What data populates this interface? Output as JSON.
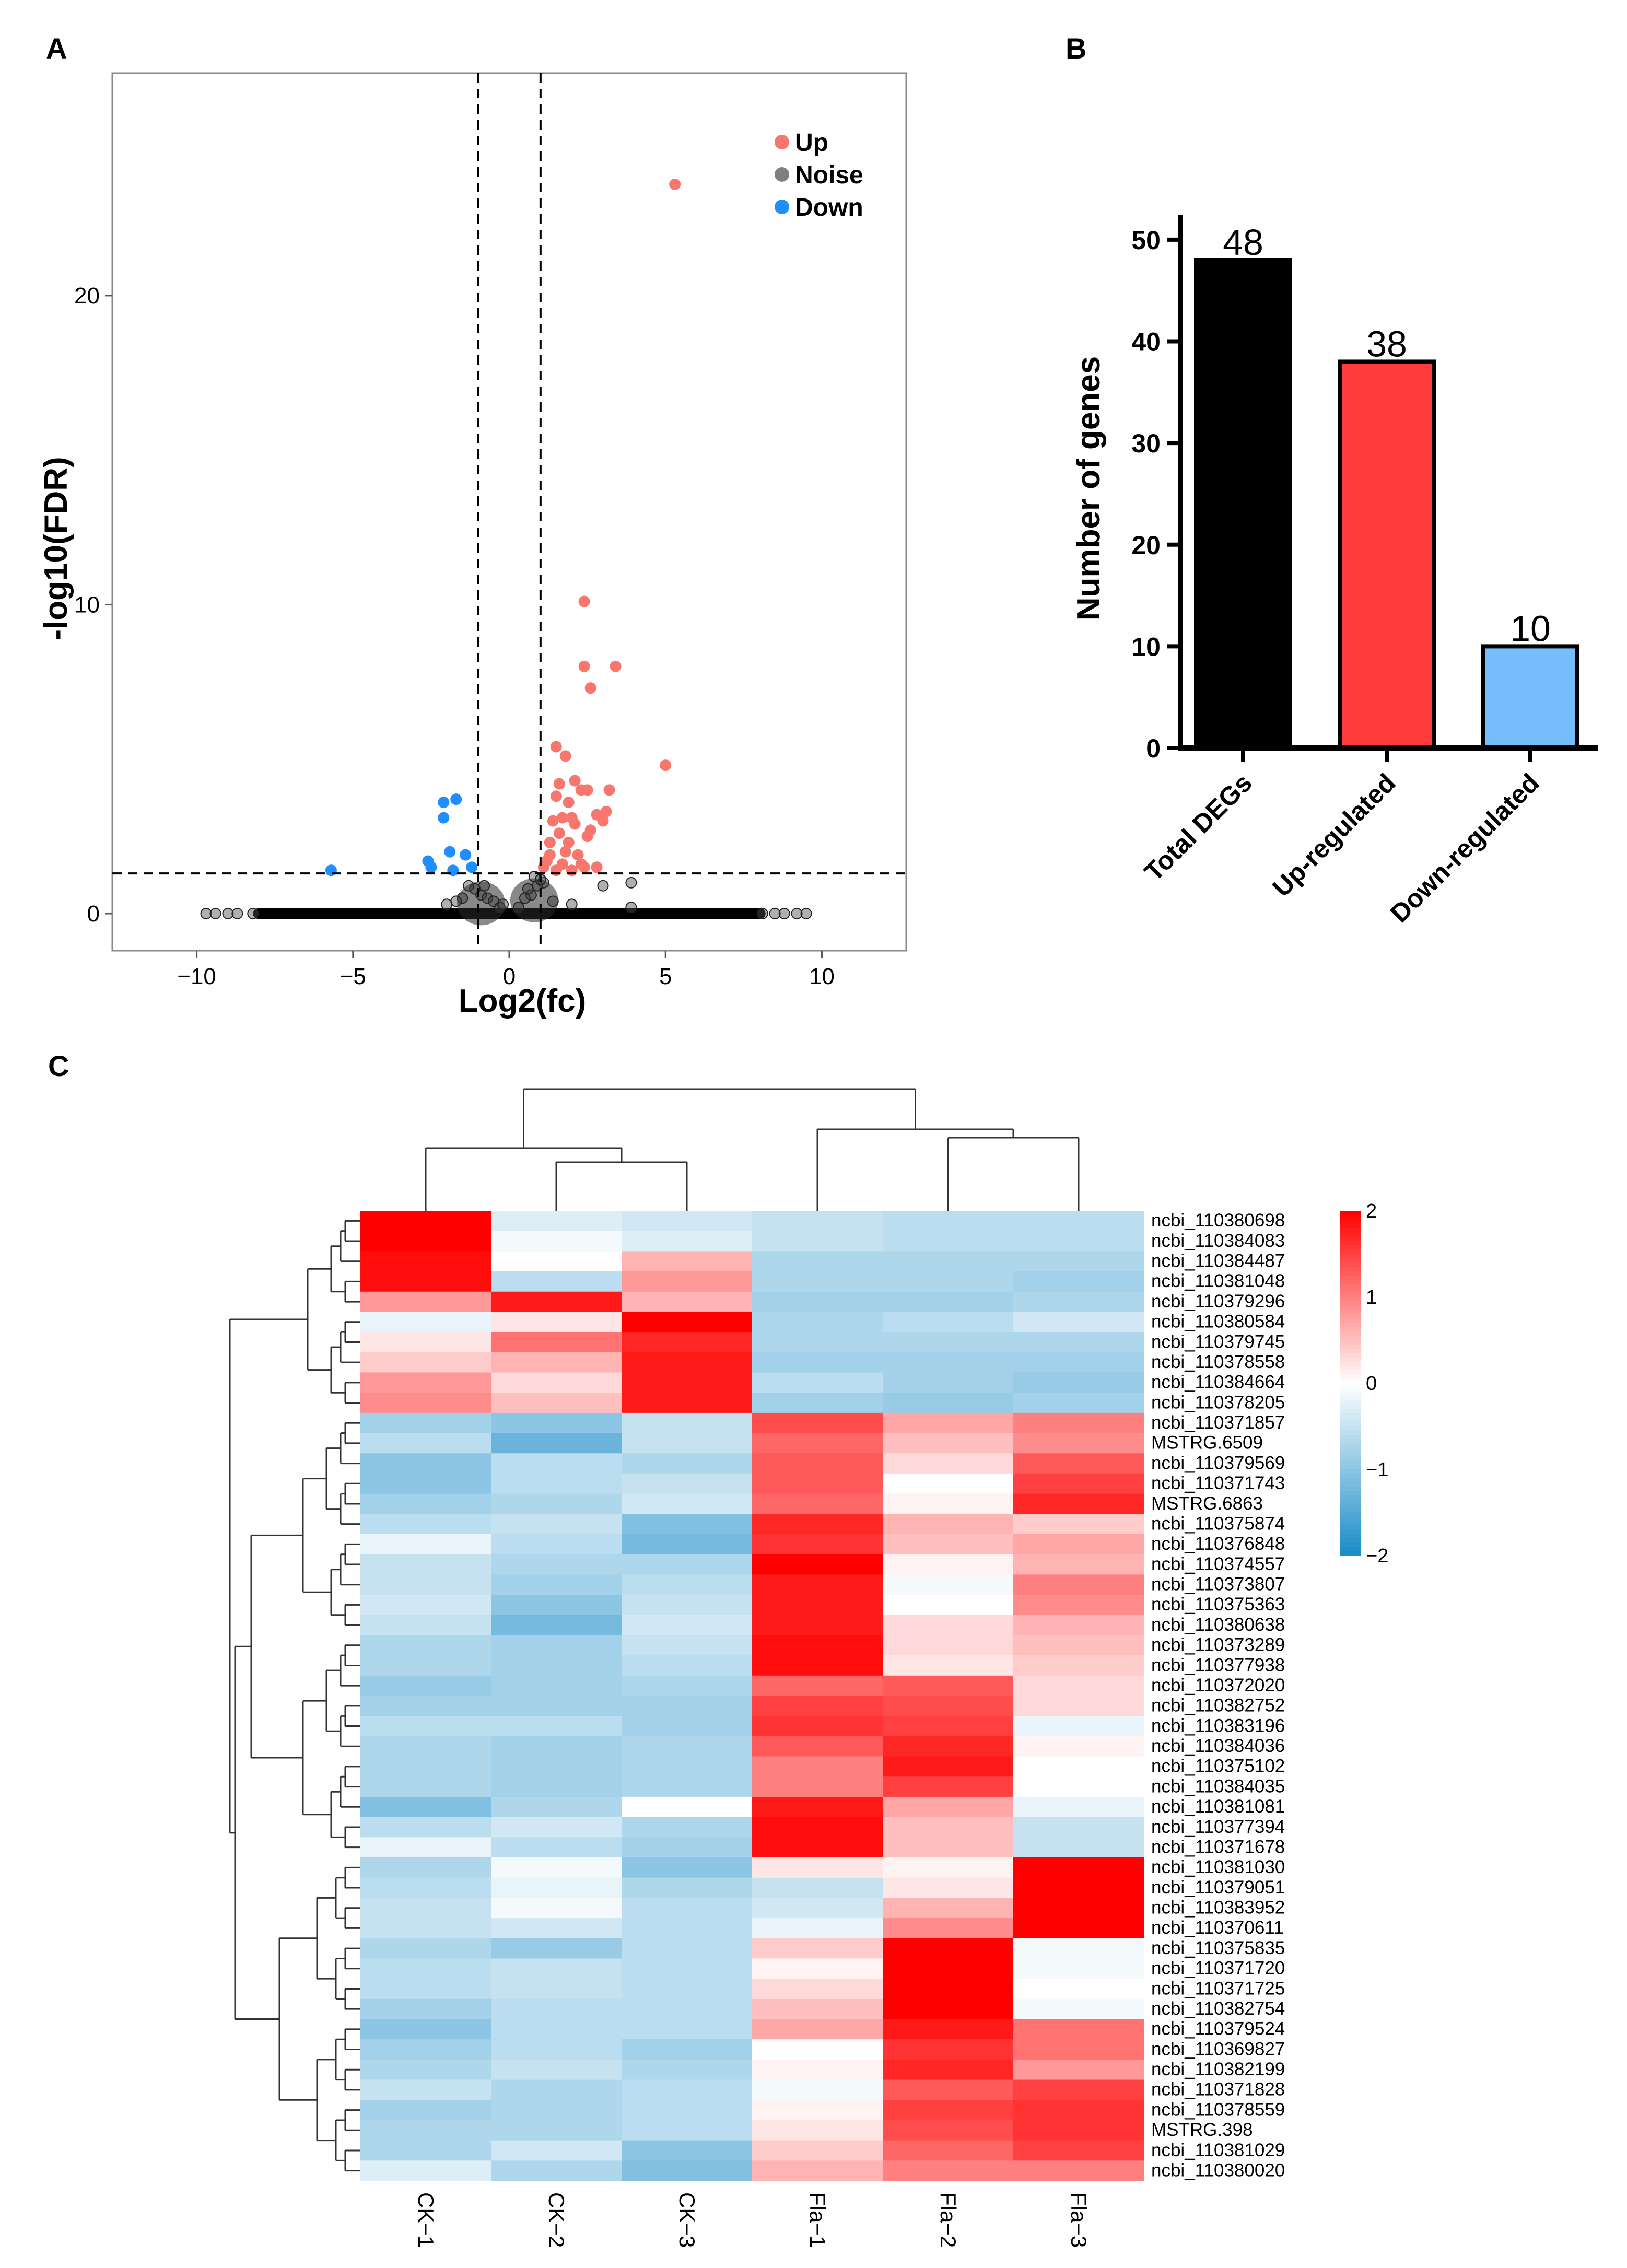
{
  "panel_labels": {
    "a": "A",
    "b": "B",
    "c": "C"
  },
  "chart_data": [
    {
      "type": "scatter",
      "title": "",
      "xlabel": "Log2(fc)",
      "ylabel": "-log10(FDR)",
      "xlim": [
        -12.7,
        12.7
      ],
      "ylim": [
        -1.2,
        27.2
      ],
      "xticks": [
        -10,
        -5,
        0,
        5,
        10
      ],
      "xtick_labels": [
        "−10",
        "−5",
        "0",
        "5",
        "10"
      ],
      "yticks": [
        0,
        10,
        20
      ],
      "ytick_labels": [
        "0",
        "10",
        "20"
      ],
      "vlines": [
        -1,
        1
      ],
      "hline": 1.3,
      "colors": {
        "Up": "#f8766d",
        "Noise": "#7f7f7f",
        "Down": "#1f8fff"
      },
      "legend": [
        {
          "name": "Up",
          "color": "#f8766d"
        },
        {
          "name": "Noise",
          "color": "#7f7f7f"
        },
        {
          "name": "Down",
          "color": "#1f8fff"
        }
      ],
      "up_points": [
        [
          5.3,
          23.6
        ],
        [
          2.4,
          10.1
        ],
        [
          2.4,
          8.0
        ],
        [
          3.4,
          8.0
        ],
        [
          2.6,
          7.3
        ],
        [
          5.0,
          4.8
        ],
        [
          1.5,
          5.4
        ],
        [
          1.8,
          5.1
        ],
        [
          2.1,
          4.3
        ],
        [
          1.6,
          4.2
        ],
        [
          2.3,
          4.0
        ],
        [
          2.5,
          4.0
        ],
        [
          1.5,
          3.8
        ],
        [
          1.9,
          3.6
        ],
        [
          2.8,
          3.2
        ],
        [
          3.1,
          3.3
        ],
        [
          1.4,
          3.0
        ],
        [
          2.1,
          2.9
        ],
        [
          1.6,
          2.6
        ],
        [
          2.5,
          2.5
        ],
        [
          1.3,
          2.3
        ],
        [
          1.8,
          2.0
        ],
        [
          2.2,
          1.9
        ],
        [
          1.2,
          1.7
        ],
        [
          1.7,
          1.6
        ],
        [
          2.4,
          1.5
        ],
        [
          1.5,
          1.4
        ],
        [
          2.0,
          1.4
        ],
        [
          2.8,
          1.5
        ],
        [
          1.3,
          1.9
        ],
        [
          3.0,
          3.0
        ],
        [
          2.0,
          3.1
        ],
        [
          1.9,
          2.3
        ],
        [
          3.2,
          4.0
        ],
        [
          1.7,
          3.1
        ],
        [
          2.6,
          2.7
        ],
        [
          1.1,
          1.5
        ],
        [
          2.3,
          1.6
        ]
      ],
      "down_points": [
        [
          -2.1,
          3.6
        ],
        [
          -1.7,
          3.7
        ],
        [
          -2.1,
          3.1
        ],
        [
          -1.9,
          2.0
        ],
        [
          -2.6,
          1.7
        ],
        [
          -2.5,
          1.5
        ],
        [
          -1.4,
          1.9
        ],
        [
          -1.8,
          1.4
        ],
        [
          -5.7,
          1.4
        ],
        [
          -1.2,
          1.5
        ]
      ],
      "noise_points": [
        [
          -9.7,
          0
        ],
        [
          -9.4,
          0
        ],
        [
          -9.0,
          0
        ],
        [
          -8.7,
          0
        ],
        [
          -8.2,
          0
        ],
        [
          9.5,
          0
        ],
        [
          9.2,
          0
        ],
        [
          8.8,
          0
        ],
        [
          8.5,
          0
        ],
        [
          8.1,
          0
        ],
        [
          -0.9,
          0.6
        ],
        [
          -0.7,
          0.5
        ],
        [
          -0.5,
          0.4
        ],
        [
          -1.1,
          0.8
        ],
        [
          -1.3,
          0.9
        ],
        [
          -0.8,
          0.9
        ],
        [
          0.7,
          0.6
        ],
        [
          0.5,
          0.5
        ],
        [
          0.9,
          0.9
        ],
        [
          1.1,
          1.0
        ],
        [
          0.6,
          0.8
        ],
        [
          0.8,
          1.2
        ],
        [
          1.0,
          1.1
        ],
        [
          3.9,
          0.2
        ],
        [
          3.0,
          0.9
        ],
        [
          3.9,
          1.0
        ],
        [
          -1.5,
          0.5
        ],
        [
          -1.7,
          0.4
        ],
        [
          -2.0,
          0.3
        ],
        [
          -0.3,
          0.2
        ],
        [
          0.3,
          0.2
        ],
        [
          -0.2,
          0.3
        ],
        [
          1.4,
          0.4
        ],
        [
          2.0,
          0.3
        ]
      ],
      "noise_band": [
        -8.2,
        8.2
      ]
    },
    {
      "type": "bar",
      "title": "",
      "xlabel": "",
      "ylabel": "Number of genes",
      "categories": [
        "Total DEGs",
        "Up-regulated",
        "Down-regulated"
      ],
      "values": [
        48,
        38,
        10
      ],
      "value_labels": [
        "48",
        "38",
        "10"
      ],
      "colors": [
        "#000000",
        "#ff3b3b",
        "#76bdfb"
      ],
      "ylim": [
        0,
        52
      ],
      "yticks": [
        0,
        10,
        20,
        30,
        40,
        50
      ],
      "ytick_labels": [
        "0",
        "10",
        "20",
        "30",
        "40",
        "50"
      ]
    },
    {
      "type": "heatmap",
      "title": "",
      "columns": [
        "CK−1",
        "CK−2",
        "CK−3",
        "Fla−1",
        "Fla−2",
        "Fla−3"
      ],
      "rows": [
        "ncbi_110380698",
        "ncbi_110384083",
        "ncbi_110384487",
        "ncbi_110381048",
        "ncbi_110379296",
        "ncbi_110380584",
        "ncbi_110379745",
        "ncbi_110378558",
        "ncbi_110384664",
        "ncbi_110378205",
        "ncbi_110371857",
        "MSTRG.6509",
        "ncbi_110379569",
        "ncbi_110371743",
        "MSTRG.6863",
        "ncbi_110375874",
        "ncbi_110376848",
        "ncbi_110374557",
        "ncbi_110373807",
        "ncbi_110375363",
        "ncbi_110380638",
        "ncbi_110373289",
        "ncbi_110377938",
        "ncbi_110372020",
        "ncbi_110382752",
        "ncbi_110383196",
        "ncbi_110384036",
        "ncbi_110375102",
        "ncbi_110384035",
        "ncbi_110381081",
        "ncbi_110377394",
        "ncbi_110371678",
        "ncbi_110381030",
        "ncbi_110379051",
        "ncbi_110383952",
        "ncbi_110370611",
        "ncbi_110375835",
        "ncbi_110371720",
        "ncbi_110371725",
        "ncbi_110382754",
        "ncbi_110379524",
        "ncbi_110369827",
        "ncbi_110382199",
        "ncbi_110371828",
        "ncbi_110378559",
        "MSTRG.398",
        "ncbi_110381029",
        "ncbi_110380020"
      ],
      "values": [
        [
          2.0,
          -0.3,
          -0.4,
          -0.5,
          -0.6,
          -0.6
        ],
        [
          2.0,
          -0.1,
          -0.3,
          -0.5,
          -0.6,
          -0.6
        ],
        [
          1.9,
          0.0,
          0.6,
          -0.7,
          -0.7,
          -0.7
        ],
        [
          1.9,
          -0.6,
          0.8,
          -0.7,
          -0.7,
          -0.8
        ],
        [
          0.8,
          1.8,
          0.6,
          -0.8,
          -0.8,
          -0.7
        ],
        [
          -0.2,
          0.2,
          2.0,
          -0.7,
          -0.6,
          -0.4
        ],
        [
          0.2,
          1.1,
          1.7,
          -0.7,
          -0.7,
          -0.7
        ],
        [
          0.4,
          0.6,
          1.8,
          -0.8,
          -0.8,
          -0.8
        ],
        [
          0.8,
          0.3,
          1.8,
          -0.6,
          -0.8,
          -0.9
        ],
        [
          0.9,
          0.5,
          1.8,
          -0.8,
          -0.9,
          -0.8
        ],
        [
          -0.8,
          -1.0,
          -0.5,
          1.4,
          0.7,
          1.0
        ],
        [
          -0.6,
          -1.3,
          -0.5,
          1.2,
          0.5,
          0.9
        ],
        [
          -1.0,
          -0.6,
          -0.7,
          1.3,
          0.3,
          1.3
        ],
        [
          -1.0,
          -0.6,
          -0.5,
          1.3,
          0.0,
          1.5
        ],
        [
          -0.8,
          -0.7,
          -0.4,
          1.2,
          0.1,
          1.7
        ],
        [
          -0.6,
          -0.5,
          -1.1,
          1.7,
          0.6,
          0.4
        ],
        [
          -0.2,
          -0.6,
          -1.2,
          1.6,
          0.5,
          0.7
        ],
        [
          -0.5,
          -0.7,
          -0.7,
          2.0,
          0.1,
          0.6
        ],
        [
          -0.5,
          -0.8,
          -0.6,
          1.8,
          -0.1,
          1.0
        ],
        [
          -0.4,
          -1.0,
          -0.5,
          1.8,
          0.0,
          0.9
        ],
        [
          -0.5,
          -1.2,
          -0.4,
          1.8,
          0.3,
          0.6
        ],
        [
          -0.7,
          -0.8,
          -0.5,
          1.9,
          0.3,
          0.5
        ],
        [
          -0.7,
          -0.8,
          -0.6,
          1.9,
          0.2,
          0.4
        ],
        [
          -0.9,
          -0.8,
          -0.7,
          1.2,
          1.3,
          0.3
        ],
        [
          -0.8,
          -0.8,
          -0.8,
          1.5,
          1.4,
          0.3
        ],
        [
          -0.6,
          -0.6,
          -0.8,
          1.6,
          1.5,
          -0.2
        ],
        [
          -0.7,
          -0.8,
          -0.7,
          1.3,
          1.7,
          0.1
        ],
        [
          -0.7,
          -0.8,
          -0.7,
          1.0,
          1.8,
          0.0
        ],
        [
          -0.7,
          -0.8,
          -0.7,
          1.0,
          1.5,
          0.0
        ],
        [
          -1.1,
          -0.7,
          0.0,
          1.8,
          0.7,
          -0.2
        ],
        [
          -0.6,
          -0.4,
          -0.7,
          1.9,
          0.5,
          -0.5
        ],
        [
          -0.2,
          -0.6,
          -0.8,
          1.9,
          0.5,
          -0.5
        ],
        [
          -0.7,
          -0.1,
          -1.0,
          0.2,
          0.1,
          2.0
        ],
        [
          -0.6,
          -0.2,
          -0.7,
          -0.5,
          0.2,
          2.0
        ],
        [
          -0.5,
          -0.1,
          -0.6,
          -0.4,
          0.6,
          2.0
        ],
        [
          -0.5,
          -0.4,
          -0.6,
          -0.2,
          0.9,
          2.0
        ],
        [
          -0.7,
          -0.9,
          -0.6,
          0.4,
          2.0,
          -0.1
        ],
        [
          -0.6,
          -0.5,
          -0.6,
          0.1,
          2.0,
          -0.1
        ],
        [
          -0.6,
          -0.5,
          -0.6,
          0.3,
          2.0,
          0.0
        ],
        [
          -0.8,
          -0.6,
          -0.6,
          0.5,
          2.0,
          -0.1
        ],
        [
          -1.0,
          -0.6,
          -0.6,
          0.7,
          1.8,
          1.1
        ],
        [
          -0.8,
          -0.6,
          -0.8,
          0.0,
          1.6,
          1.1
        ],
        [
          -0.7,
          -0.5,
          -0.7,
          0.1,
          1.7,
          0.8
        ],
        [
          -0.5,
          -0.7,
          -0.6,
          -0.1,
          1.3,
          1.5
        ],
        [
          -0.8,
          -0.7,
          -0.6,
          0.1,
          1.5,
          1.6
        ],
        [
          -0.7,
          -0.7,
          -0.6,
          0.2,
          1.4,
          1.6
        ],
        [
          -0.7,
          -0.4,
          -1.0,
          0.4,
          1.2,
          1.5
        ],
        [
          -0.3,
          -0.7,
          -1.1,
          0.6,
          1.0,
          1.0
        ]
      ],
      "colorbar": {
        "min": -2,
        "max": 2,
        "ticks": [
          "2",
          "1",
          "0",
          "−1",
          "−2"
        ],
        "low": "#1a8cc8",
        "mid": "#ffffff",
        "high": "#ff0000"
      }
    }
  ]
}
